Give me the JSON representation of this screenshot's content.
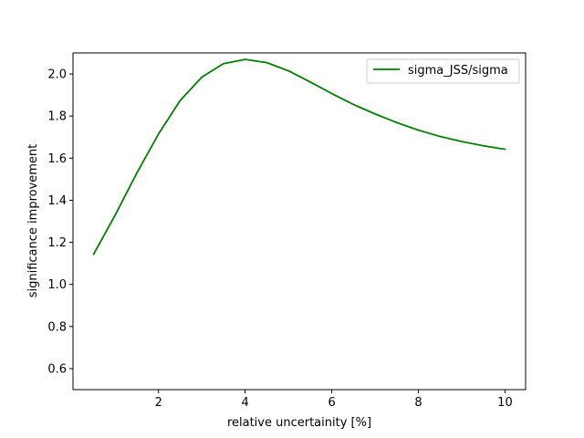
{
  "chart_data": {
    "type": "line",
    "xlabel": "relative uncertainity [%]",
    "ylabel": "significance improvement",
    "xlim": [
      0.025,
      10.475
    ],
    "ylim": [
      0.5,
      2.1
    ],
    "xticks": [
      2,
      4,
      6,
      8,
      10
    ],
    "xtick_labels": [
      "2",
      "4",
      "6",
      "8",
      "10"
    ],
    "yticks": [
      0.6,
      0.8,
      1.0,
      1.2,
      1.4,
      1.6,
      1.8,
      2.0
    ],
    "ytick_labels": [
      "0.6",
      "0.8",
      "1.0",
      "1.2",
      "1.4",
      "1.6",
      "1.8",
      "2.0"
    ],
    "grid": false,
    "legend_position": "top-right",
    "series": [
      {
        "name": "sigma_JSS/sigma",
        "color": "#008000",
        "x": [
          0.5,
          1.0,
          1.5,
          2.0,
          2.5,
          3.0,
          3.5,
          4.0,
          4.5,
          5.0,
          5.5,
          6.0,
          6.5,
          7.0,
          7.5,
          8.0,
          8.5,
          9.0,
          9.5,
          10.0
        ],
        "y": [
          1.143,
          1.33,
          1.53,
          1.715,
          1.874,
          1.985,
          2.049,
          2.069,
          2.054,
          2.015,
          1.962,
          1.907,
          1.855,
          1.81,
          1.769,
          1.733,
          1.703,
          1.679,
          1.659,
          1.642
        ]
      }
    ]
  }
}
